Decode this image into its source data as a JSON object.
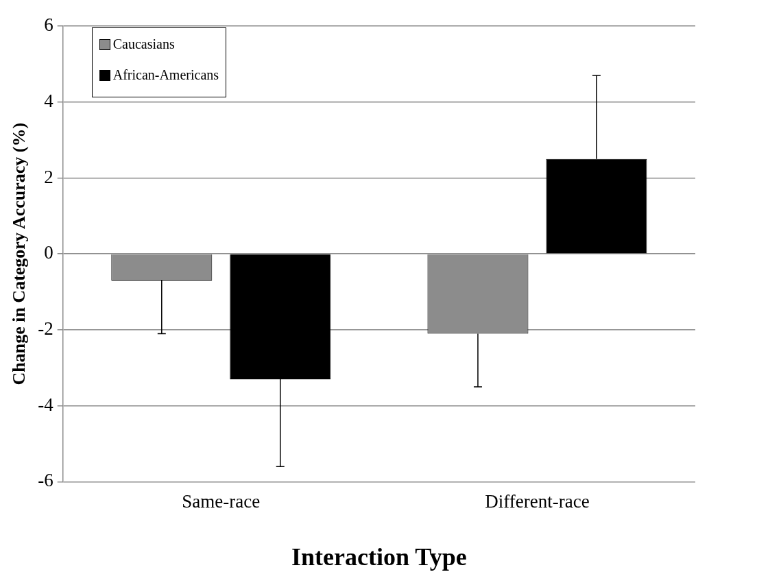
{
  "chart_data": {
    "type": "bar",
    "xlabel": "Interaction Type",
    "ylabel": "Change in Category Accuracy (%)",
    "categories": [
      "Same-race",
      "Different-race"
    ],
    "series": [
      {
        "name": "Caucasians",
        "color": "#8c8c8c",
        "values": [
          -0.7,
          -2.1
        ],
        "errors": [
          [
            -2.1,
            -0.7
          ],
          [
            -3.5,
            -2.1
          ]
        ]
      },
      {
        "name": "African-Americans",
        "color": "#000000",
        "values": [
          -3.3,
          2.5
        ],
        "errors": [
          [
            -5.6,
            -3.3
          ],
          [
            2.5,
            4.7
          ]
        ]
      }
    ],
    "ylim": [
      -6,
      6
    ],
    "yticks": [
      -6,
      -4,
      -2,
      0,
      2,
      4,
      6
    ],
    "grid": "y",
    "legend": "top left"
  }
}
